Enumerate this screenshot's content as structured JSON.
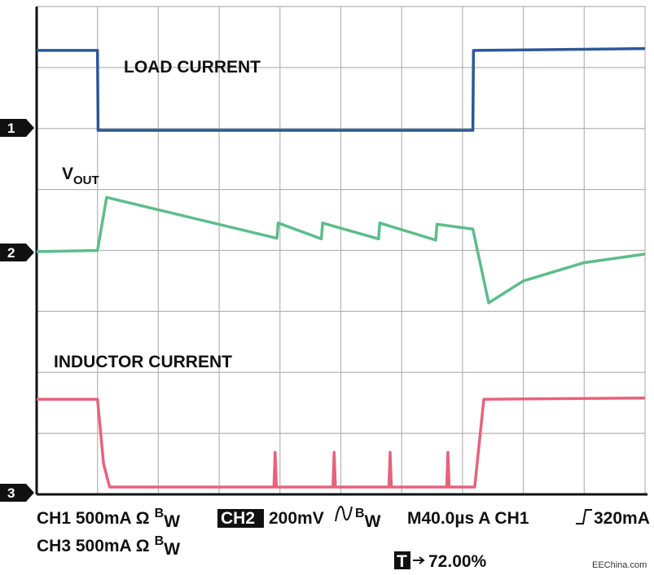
{
  "chart_data": {
    "type": "line",
    "xlim": [
      0,
      10
    ],
    "ylim": [
      0,
      8
    ],
    "xticks": [
      0,
      1,
      2,
      3,
      4,
      5,
      6,
      7,
      8,
      9,
      10
    ],
    "yticks": [
      0,
      1,
      2,
      3,
      4,
      5,
      6,
      7,
      8
    ],
    "grid": true,
    "series": [
      {
        "name": "LOAD CURRENT",
        "color": "#2f5699",
        "x": [
          0,
          1.0,
          1.01,
          7.17,
          7.18,
          10
        ],
        "values": [
          7.28,
          7.28,
          5.97,
          5.97,
          7.28,
          7.31
        ]
      },
      {
        "name": "V",
        "name_sub": "OUT",
        "color": "#5cbd8b",
        "x": [
          0,
          1.0,
          1.15,
          3.95,
          3.97,
          4.68,
          4.7,
          5.62,
          5.64,
          6.56,
          6.58,
          7.17,
          7.43,
          8.0,
          9.0,
          10
        ],
        "values": [
          3.98,
          4.0,
          4.87,
          4.2,
          4.45,
          4.19,
          4.45,
          4.19,
          4.45,
          4.17,
          4.43,
          4.35,
          3.14,
          3.5,
          3.8,
          3.94
        ]
      },
      {
        "name": "INDUCTOR CURRENT",
        "color": "#e8627c",
        "x": [
          0,
          1.0,
          1.1,
          1.2,
          3.9,
          3.92,
          3.94,
          4.87,
          4.89,
          4.91,
          5.79,
          5.81,
          5.83,
          6.74,
          6.76,
          6.78,
          7.2,
          7.35,
          10
        ],
        "values": [
          1.56,
          1.56,
          0.5,
          0.12,
          0.12,
          0.69,
          0.12,
          0.12,
          0.69,
          0.12,
          0.12,
          0.69,
          0.12,
          0.12,
          0.69,
          0.12,
          0.12,
          1.56,
          1.58
        ]
      }
    ],
    "channel_markers": [
      "1",
      "2",
      "3"
    ],
    "status": {
      "ch1": "CH1 500mA Ω",
      "ch2_box": "CH2",
      "ch2": "200mV",
      "ch3": "CH3 500mA Ω",
      "bw_b": "B",
      "bw_w": "W",
      "timebase": "M40.0µs  A CH1",
      "trigger_level": "320mA",
      "trigger_box": "T",
      "trigger_pos": "72.00%",
      "watermark": "EEChina.com"
    }
  }
}
